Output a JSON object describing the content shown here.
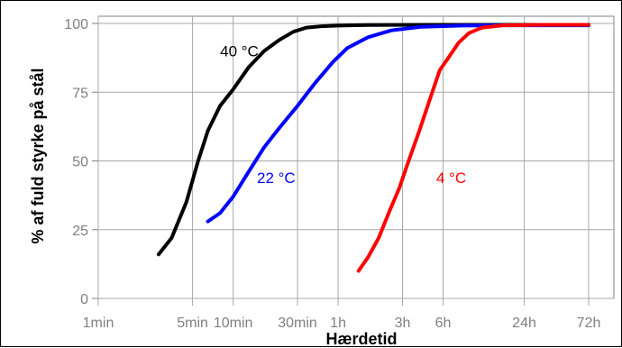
{
  "chart_data": {
    "type": "line",
    "title": "",
    "xlabel": "Hærdetid",
    "ylabel": "% af fuld styrke på stål",
    "x_scale": "log",
    "x_unit": "minutes",
    "xlim": [
      1,
      4320
    ],
    "ylim": [
      0,
      100
    ],
    "grid": true,
    "x_ticks": [
      {
        "value": 1,
        "label": "1min"
      },
      {
        "value": 5,
        "label": "5min"
      },
      {
        "value": 10,
        "label": "10min"
      },
      {
        "value": 30,
        "label": "30min"
      },
      {
        "value": 60,
        "label": "1h"
      },
      {
        "value": 180,
        "label": "3h"
      },
      {
        "value": 360,
        "label": "6h"
      },
      {
        "value": 1440,
        "label": "24h"
      },
      {
        "value": 4320,
        "label": "72h"
      }
    ],
    "y_ticks": [
      {
        "value": 0,
        "label": "0"
      },
      {
        "value": 25,
        "label": "25"
      },
      {
        "value": 50,
        "label": "50"
      },
      {
        "value": 75,
        "label": "75"
      },
      {
        "value": 100,
        "label": "100"
      }
    ],
    "series": [
      {
        "name": "40 °C",
        "color": "#000000",
        "x": [
          2.8,
          3.5,
          4.5,
          5.5,
          6.5,
          8,
          10,
          13,
          17,
          22,
          28,
          35,
          45,
          60,
          100,
          300,
          1000,
          4320
        ],
        "y": [
          16,
          22,
          35,
          50,
          61,
          70,
          76,
          84,
          90,
          94,
          97,
          98.5,
          99,
          99.2,
          99.4,
          99.5,
          99.5,
          99.5
        ],
        "label_at": {
          "x": 8,
          "y": 88
        }
      },
      {
        "name": "22 °C",
        "color": "#0000ff",
        "x": [
          6.5,
          8,
          10,
          13,
          17,
          22,
          30,
          40,
          55,
          70,
          100,
          150,
          250,
          500,
          1000,
          4320
        ],
        "y": [
          28,
          31,
          37,
          46,
          55,
          62,
          70,
          78,
          86,
          91,
          95,
          97.5,
          98.8,
          99.2,
          99.3,
          99.3
        ],
        "label_at": {
          "x": 15,
          "y": 42
        }
      },
      {
        "name": "4 °C",
        "color": "#ff0000",
        "x": [
          85,
          100,
          120,
          145,
          170,
          200,
          240,
          290,
          340,
          400,
          470,
          560,
          700,
          1000,
          2000,
          4320
        ],
        "y": [
          10,
          15,
          22,
          32,
          40,
          50,
          61,
          73,
          83,
          88,
          93,
          96.5,
          98.5,
          99.3,
          99.5,
          99.5
        ],
        "label_at": {
          "x": 320,
          "y": 42
        }
      }
    ]
  }
}
